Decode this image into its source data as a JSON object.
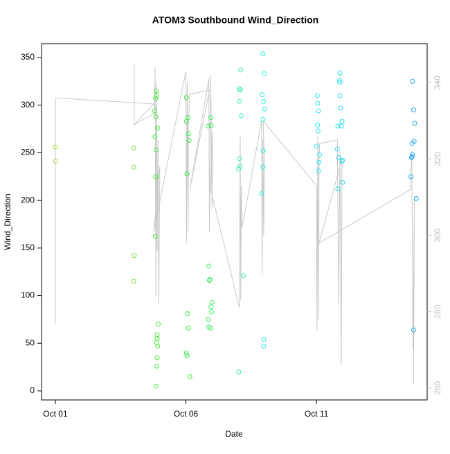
{
  "chart_data": {
    "type": "scatter",
    "title": "ATOM3 Southbound Wind_Direction",
    "x_label": "Date",
    "y_label": "Wind_Direction",
    "xlim": [
      -0.53,
      14.24
    ],
    "xticks": [
      {
        "value": 0,
        "label": "Oct 01"
      },
      {
        "value": 5,
        "label": "Oct 06"
      },
      {
        "value": 10,
        "label": "Oct 11"
      }
    ],
    "ylim": [
      -9.5,
      364.6
    ],
    "yticks": [
      0,
      50,
      100,
      150,
      200,
      250,
      300,
      350
    ],
    "y2lim": [
      256.9,
      350.2
    ],
    "y2ticks": [
      260,
      280,
      300,
      320,
      340
    ],
    "y2_color": "#bebebe",
    "series": [
      {
        "color": "#9ee03a",
        "x": [
          0,
          0
        ],
        "values": [
          256,
          241
        ]
      },
      {
        "color": "#7ae033",
        "x": [
          3.0,
          3.0,
          3.02,
          3.0
        ],
        "values": [
          255,
          235,
          142,
          115
        ]
      },
      {
        "color": "#48ee3a",
        "x": [
          3.86,
          3.88,
          3.84,
          3.8,
          3.85,
          3.92,
          3.82,
          3.86,
          3.84,
          3.83,
          3.94,
          3.9,
          3.9,
          3.88,
          3.92,
          3.9,
          3.88,
          3.86
        ],
        "values": [
          315,
          310,
          307,
          294,
          288,
          276,
          267,
          253,
          225,
          162,
          70,
          59,
          55,
          51,
          47,
          35,
          26,
          5
        ]
      },
      {
        "color": "#3aee4a",
        "x": [
          5.02,
          5.08,
          5.02,
          5.1,
          5.12,
          5.04,
          5.06,
          5.1,
          5.02,
          5.04,
          5.15
        ],
        "values": [
          308,
          287,
          283,
          270,
          263,
          228,
          81,
          66,
          40,
          37,
          15
        ]
      },
      {
        "color": "#3aee66",
        "x": [
          5.95,
          5.97,
          5.85,
          5.88,
          5.92,
          5.9,
          6.0,
          5.96,
          5.98,
          5.86,
          5.88,
          5.95
        ],
        "values": [
          287,
          279,
          278,
          131,
          117,
          116,
          93,
          88,
          83,
          75,
          67,
          66
        ]
      },
      {
        "color": "#30eebb",
        "x": [
          7.1,
          7.05,
          7.08,
          7.05,
          7.12,
          7.05,
          7.08,
          7.02,
          7.2,
          7.02
        ],
        "values": [
          337,
          317,
          316,
          304,
          289,
          244,
          236,
          233,
          121,
          20
        ]
      },
      {
        "color": "#28eedd",
        "x": [
          7.95,
          8.0,
          7.92,
          7.98,
          8.02,
          7.95,
          7.96,
          7.95,
          7.9,
          7.98,
          7.98
        ],
        "values": [
          354,
          333,
          311,
          304,
          296,
          285,
          252,
          235,
          207,
          54,
          47
        ]
      },
      {
        "color": "#28e4ee",
        "x": [
          10.03,
          10.05,
          10.08,
          10.04,
          10.06,
          10.0,
          10.12,
          10.1,
          10.08
        ],
        "values": [
          310,
          302,
          294,
          279,
          273,
          257,
          248,
          240,
          231
        ]
      },
      {
        "color": "#28dcee",
        "x": [
          10.9,
          10.88,
          10.9,
          10.9,
          10.92,
          10.98,
          10.95,
          10.82,
          10.8,
          10.85,
          10.98,
          11.0,
          10.82,
          11.0
        ],
        "values": [
          334,
          326,
          324,
          310,
          297,
          283,
          278,
          278,
          254,
          245,
          241,
          242,
          212,
          219
        ]
      },
      {
        "color": "#22aaee",
        "x": [
          13.68,
          13.72,
          13.76,
          13.74,
          13.66,
          13.68,
          13.66,
          13.64,
          13.62,
          13.82,
          13.72
        ],
        "values": [
          325,
          295,
          281,
          262,
          260,
          248,
          246,
          245,
          225,
          202,
          64
        ]
      },
      {
        "axis": "y2",
        "color": "#c8c8c8",
        "x": [
          0,
          0,
          3.77,
          3.02,
          3.02,
          3.02,
          3.8,
          3.82,
          3.85,
          3.88,
          3.9,
          3.93,
          3.96,
          4.0,
          3.77,
          5.0,
          5.02,
          5.05,
          5.08,
          5.1,
          5.15,
          5.9,
          5.15,
          5.88,
          5.9,
          5.95,
          6.0,
          6.02,
          5.95,
          7.05,
          7.08,
          7.1,
          7.12,
          7.15,
          7.9,
          7.92,
          7.95,
          7.98,
          8.0,
          7.96,
          10.0,
          10.02,
          10.05,
          10.08,
          10.1,
          10.12,
          10.8,
          10.85,
          10.9,
          10.95,
          10.98,
          10.1,
          13.6,
          13.65,
          13.7,
          13.75,
          13.72
        ],
        "values": [
          276.7,
          336,
          334.4,
          329,
          345,
          329,
          332,
          344,
          284,
          340,
          296,
          325,
          282,
          318,
          301,
          343,
          298,
          340,
          301,
          330,
          337,
          338,
          312,
          341,
          301,
          342,
          307,
          327,
          312,
          281,
          326,
          283,
          313,
          302,
          330,
          290,
          325,
          300,
          320,
          330,
          313,
          275,
          326,
          278,
          320,
          324,
          325,
          282,
          322,
          266,
          320,
          298,
          312,
          322,
          270,
          310,
          261
        ]
      }
    ]
  }
}
